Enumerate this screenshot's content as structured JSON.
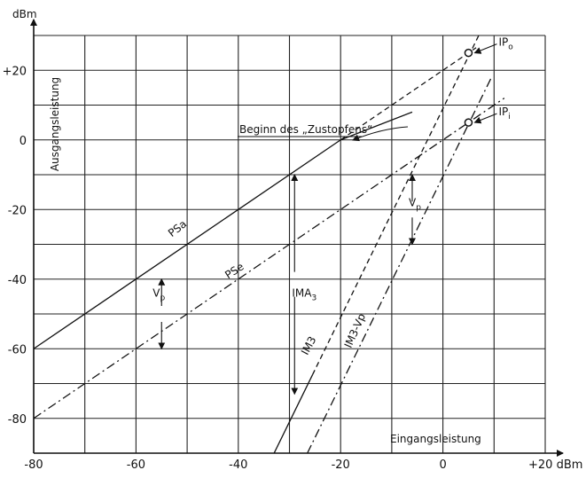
{
  "chart_data": {
    "type": "line",
    "title": "",
    "xlabel": "Eingangsleistung",
    "ylabel": "Ausgangsleistung",
    "x_unit": "+20 dBm",
    "y_unit": "dBm",
    "xlim": [
      -80,
      20
    ],
    "ylim": [
      -90,
      30
    ],
    "x_ticks": [
      -80,
      -60,
      -40,
      -20,
      0
    ],
    "x_tick_labels": [
      "-80",
      "-60",
      "-40",
      "-20",
      "0"
    ],
    "y_ticks": [
      20,
      0,
      -20,
      -40,
      -60,
      -80
    ],
    "y_tick_labels": [
      "+20",
      "0",
      "-20",
      "-40",
      "-60",
      "-80"
    ],
    "grid": true,
    "series": [
      {
        "name": "PSa",
        "style": "solid",
        "x": [
          -80,
          -20
        ],
        "y": [
          -60,
          0
        ]
      },
      {
        "name": "",
        "style": "dashed",
        "x": [
          -20,
          6.5
        ],
        "y": [
          0,
          26.5
        ]
      },
      {
        "name": "PSe",
        "style": "dashdot",
        "x": [
          -80,
          12
        ],
        "y": [
          -80,
          12
        ]
      },
      {
        "name": "IM3",
        "style": "solid",
        "x": [
          -33,
          -25.5
        ],
        "y": [
          -90,
          -67.5
        ]
      },
      {
        "name": "",
        "style": "dashed",
        "x": [
          -25.5,
          7
        ],
        "y": [
          -67.5,
          30
        ]
      },
      {
        "name": "IM3-Vp",
        "style": "dashdot",
        "x": [
          -26.5,
          9.5
        ],
        "y": [
          -90,
          18
        ]
      },
      {
        "name": "",
        "style": "solid",
        "x": [
          -20,
          -6
        ],
        "y": [
          0,
          8
        ]
      }
    ],
    "points": [
      {
        "label": "IP",
        "sub": "o",
        "x": 5,
        "y": 25
      },
      {
        "label": "IP",
        "sub": "i",
        "x": 5,
        "y": 5
      }
    ],
    "annotations": [
      {
        "text": "Beginn des „Zustopfens“",
        "x": -20,
        "y": 0
      },
      {
        "text": "IMA",
        "sub": "3",
        "x": -29.5,
        "y": -45
      },
      {
        "text": "V",
        "sub": "p",
        "x": -55,
        "y": -45
      },
      {
        "text": "V",
        "sub": "p",
        "x": -6,
        "y": -19
      }
    ],
    "arrows": [
      {
        "x": -55,
        "from": -40,
        "to": -60
      },
      {
        "x": -29,
        "from": -10,
        "to": -73
      },
      {
        "x": -6,
        "from": -10,
        "to": -30
      }
    ]
  }
}
